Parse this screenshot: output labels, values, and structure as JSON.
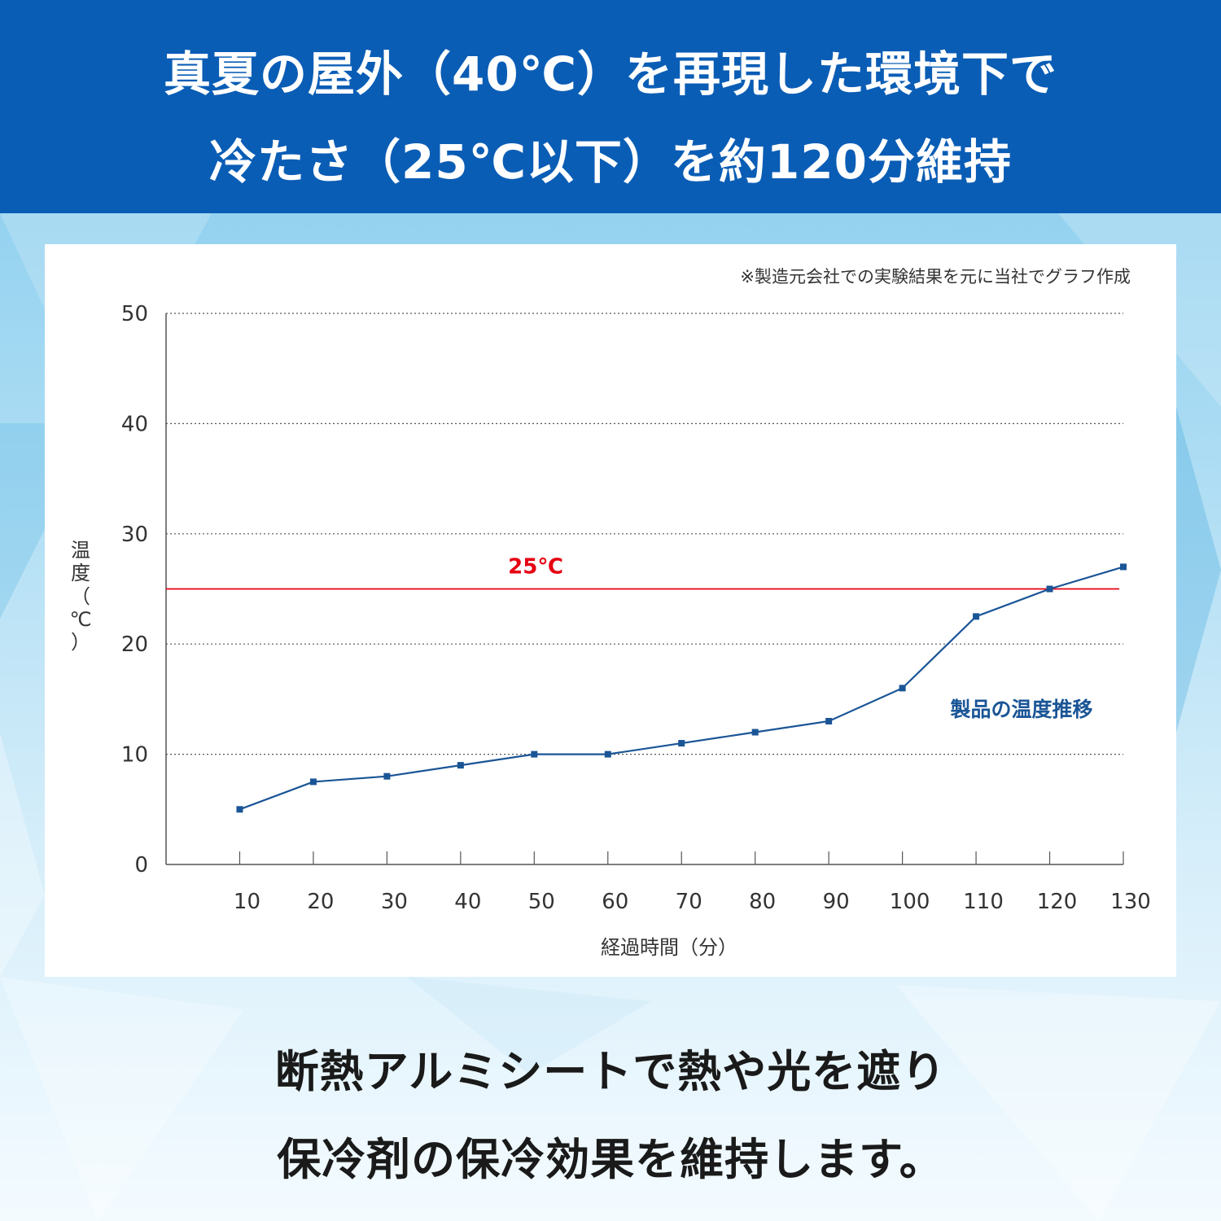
{
  "header": {
    "line1": "真夏の屋外（40℃）を再現した環境下で",
    "line2": "冷たさ（25℃以下）を約120分維持"
  },
  "note": "※製造元会社での実験結果を元に当社でグラフ作成",
  "footer": {
    "line1": "断熱アルミシートで熱や光を遮り",
    "line2": "保冷剤の保冷効果を維持します。"
  },
  "colors": {
    "header_bg": "#0a5db5",
    "series": "#1a5596",
    "threshold": "#e60012"
  },
  "chart_data": {
    "type": "line",
    "xlabel": "経過時間（分）",
    "ylabel": "温度（℃）",
    "ylabel_chars": [
      "温",
      "度",
      "（",
      "℃",
      "）"
    ],
    "x": [
      10,
      20,
      30,
      40,
      50,
      60,
      70,
      80,
      90,
      100,
      110,
      120,
      130
    ],
    "xlim": [
      0,
      130
    ],
    "ylim": [
      0,
      50
    ],
    "yticks": [
      0,
      10,
      20,
      30,
      40,
      50
    ],
    "grid": true,
    "series": [
      {
        "name": "製品の温度推移",
        "values": [
          5,
          7.5,
          8,
          9,
          10,
          10,
          11,
          12,
          13,
          16,
          22.5,
          25,
          27
        ]
      }
    ],
    "threshold": {
      "value": 25,
      "label": "25℃"
    }
  }
}
